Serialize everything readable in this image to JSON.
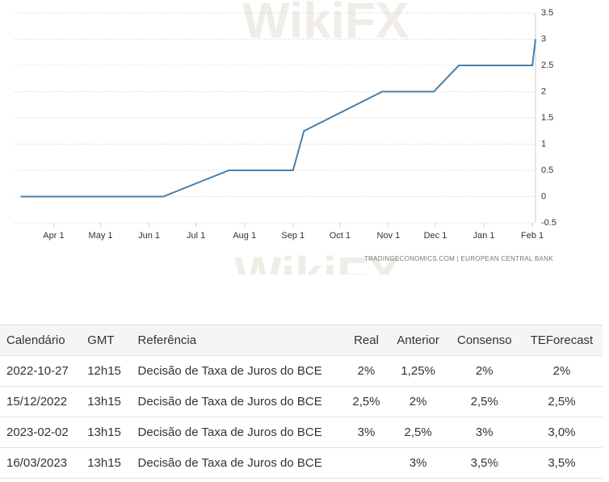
{
  "chart_data": {
    "type": "line",
    "x": [
      "Mar 11",
      "Jun 10",
      "Jul 22",
      "Sep 1",
      "Sep 8",
      "Oct 28",
      "Nov 30",
      "Dec 16",
      "Feb 1",
      "Feb 3"
    ],
    "values": [
      0,
      0,
      0.5,
      0.5,
      1.25,
      2,
      2,
      2.5,
      2.5,
      3
    ],
    "color": "#4a7fa8",
    "xlim": [
      "Mar 7",
      "Feb 3"
    ],
    "xticks": [
      "Apr 1",
      "May 1",
      "Jun 1",
      "Jul 1",
      "Aug 1",
      "Sep 1",
      "Oct 1",
      "Nov 1",
      "Dec 1",
      "Jan 1",
      "Feb 1"
    ],
    "ylim": [
      -0.5,
      3.5
    ],
    "yticks": [
      3.5,
      3,
      2.5,
      2,
      1.5,
      1,
      0.5,
      0,
      -0.5
    ],
    "grid": true,
    "source": "TRADINGECONOMICS.COM  |  EUROPEAN CENTRAL BANK",
    "watermark": "WikiFX"
  },
  "table": {
    "header": [
      "Calendário",
      "GMT",
      "Referência",
      "Real",
      "Anterior",
      "Consenso",
      "TEForecast"
    ],
    "rows": [
      [
        "2022-10-27",
        "12h15",
        "Decisão de Taxa de Juros do BCE",
        "2%",
        "1,25%",
        "2%",
        "2%"
      ],
      [
        "15/12/2022",
        "13h15",
        "Decisão de Taxa de Juros do BCE",
        "2,5%",
        "2%",
        "2,5%",
        "2,5%"
      ],
      [
        "2023-02-02",
        "13h15",
        "Decisão de Taxa de Juros do BCE",
        "3%",
        "2,5%",
        "3%",
        "3,0%"
      ],
      [
        "16/03/2023",
        "13h15",
        "Decisão de Taxa de Juros do BCE",
        null,
        "3%",
        "3,5%",
        "3,5%"
      ]
    ]
  }
}
